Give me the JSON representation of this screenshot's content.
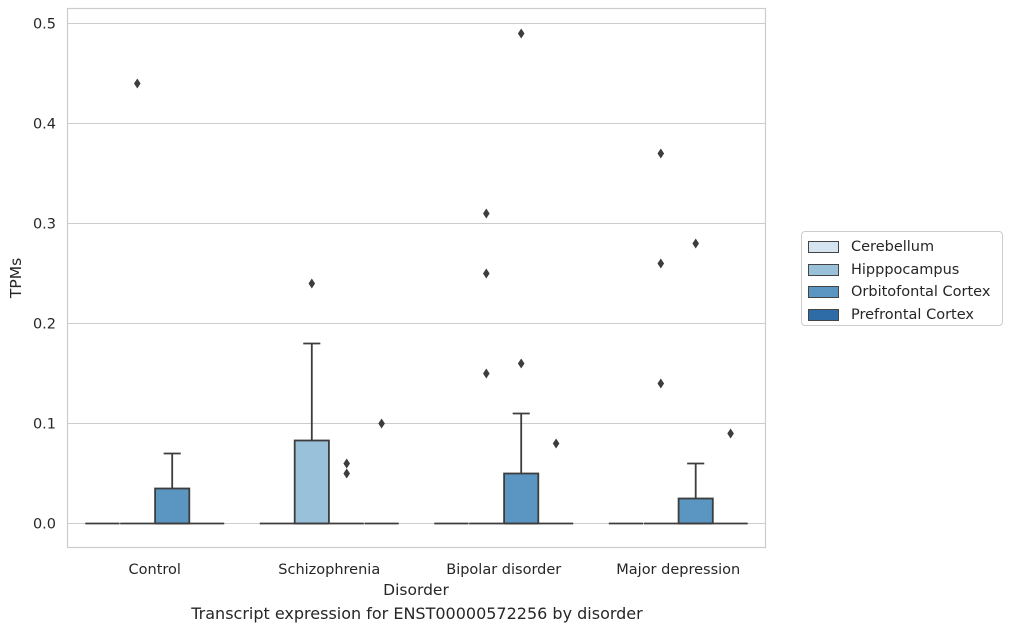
{
  "caption": "Transcript expression for ENST00000572256 by disorder",
  "chart_data": {
    "type": "box",
    "xlabel": "Disorder",
    "ylabel": "TPMs",
    "ylim": [
      -0.024,
      0.515
    ],
    "yticks": [
      0.0,
      0.1,
      0.2,
      0.3,
      0.4,
      0.5
    ],
    "ytick_labels": [
      "0.0",
      "0.1",
      "0.2",
      "0.3",
      "0.4",
      "0.5"
    ],
    "grid": "horizontal",
    "legend_position": "right",
    "categories": [
      "Control",
      "Schizophrenia",
      "Bipolar disorder",
      "Major depression"
    ],
    "series": [
      {
        "name": "Cerebellum",
        "color": "#d6e4f0",
        "boxes": [
          {
            "category": "Control",
            "q1": 0.0,
            "median": 0.0,
            "q3": 0.0,
            "whisker_low": 0.0,
            "whisker_high": 0.0,
            "outliers": []
          },
          {
            "category": "Schizophrenia",
            "q1": 0.0,
            "median": 0.0,
            "q3": 0.0,
            "whisker_low": 0.0,
            "whisker_high": 0.0,
            "outliers": []
          },
          {
            "category": "Bipolar disorder",
            "q1": 0.0,
            "median": 0.0,
            "q3": 0.0,
            "whisker_low": 0.0,
            "whisker_high": 0.0,
            "outliers": []
          },
          {
            "category": "Major depression",
            "q1": 0.0,
            "median": 0.0,
            "q3": 0.0,
            "whisker_low": 0.0,
            "whisker_high": 0.0,
            "outliers": []
          }
        ]
      },
      {
        "name": "Hipppocampus",
        "color": "#9ac1da",
        "boxes": [
          {
            "category": "Control",
            "q1": 0.0,
            "median": 0.0,
            "q3": 0.0,
            "whisker_low": 0.0,
            "whisker_high": 0.0,
            "outliers": [
              0.44
            ]
          },
          {
            "category": "Schizophrenia",
            "q1": 0.0,
            "median": 0.0,
            "q3": 0.083,
            "whisker_low": 0.0,
            "whisker_high": 0.18,
            "outliers": [
              0.24
            ]
          },
          {
            "category": "Bipolar disorder",
            "q1": 0.0,
            "median": 0.0,
            "q3": 0.0,
            "whisker_low": 0.0,
            "whisker_high": 0.0,
            "outliers": [
              0.15,
              0.25,
              0.31
            ]
          },
          {
            "category": "Major depression",
            "q1": 0.0,
            "median": 0.0,
            "q3": 0.0,
            "whisker_low": 0.0,
            "whisker_high": 0.0,
            "outliers": [
              0.14,
              0.26,
              0.37
            ]
          }
        ]
      },
      {
        "name": "Orbitofontal Cortex",
        "color": "#5b96c2",
        "boxes": [
          {
            "category": "Control",
            "q1": 0.0,
            "median": 0.0,
            "q3": 0.035,
            "whisker_low": 0.0,
            "whisker_high": 0.07,
            "outliers": []
          },
          {
            "category": "Schizophrenia",
            "q1": 0.0,
            "median": 0.0,
            "q3": 0.0,
            "whisker_low": 0.0,
            "whisker_high": 0.0,
            "outliers": [
              0.05,
              0.06
            ]
          },
          {
            "category": "Bipolar disorder",
            "q1": 0.0,
            "median": 0.0,
            "q3": 0.05,
            "whisker_low": 0.0,
            "whisker_high": 0.11,
            "outliers": [
              0.16,
              0.49
            ]
          },
          {
            "category": "Major depression",
            "q1": 0.0,
            "median": 0.0,
            "q3": 0.025,
            "whisker_low": 0.0,
            "whisker_high": 0.06,
            "outliers": [
              0.28
            ]
          }
        ]
      },
      {
        "name": "Prefrontal Cortex",
        "color": "#2e6ca8",
        "boxes": [
          {
            "category": "Control",
            "q1": 0.0,
            "median": 0.0,
            "q3": 0.0,
            "whisker_low": 0.0,
            "whisker_high": 0.0,
            "outliers": []
          },
          {
            "category": "Schizophrenia",
            "q1": 0.0,
            "median": 0.0,
            "q3": 0.0,
            "whisker_low": 0.0,
            "whisker_high": 0.0,
            "outliers": [
              0.1
            ]
          },
          {
            "category": "Bipolar disorder",
            "q1": 0.0,
            "median": 0.0,
            "q3": 0.0,
            "whisker_low": 0.0,
            "whisker_high": 0.0,
            "outliers": [
              0.08
            ]
          },
          {
            "category": "Major depression",
            "q1": 0.0,
            "median": 0.0,
            "q3": 0.0,
            "whisker_low": 0.0,
            "whisker_high": 0.0,
            "outliers": [
              0.09
            ]
          }
        ]
      }
    ]
  }
}
